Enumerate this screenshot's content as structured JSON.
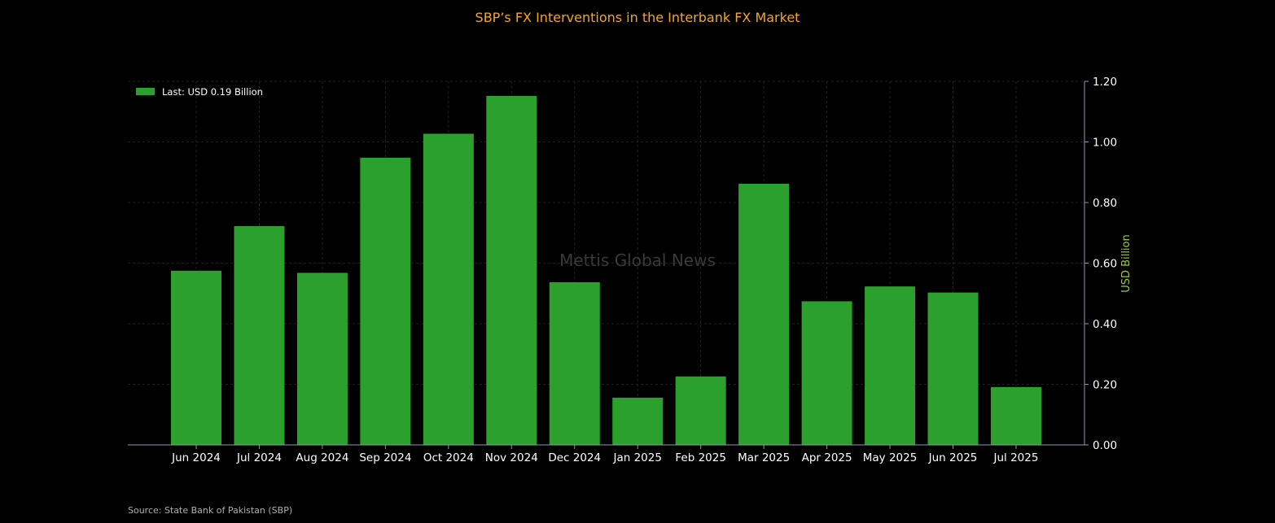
{
  "chart_data": {
    "type": "bar",
    "title": "SBP’s FX Interventions in the Interbank FX Market",
    "xlabel": "",
    "ylabel": "USD Billion",
    "categories": [
      "Jun 2024",
      "Jul 2024",
      "Aug 2024",
      "Sep 2024",
      "Oct 2024",
      "Nov 2024",
      "Dec 2024",
      "Jan 2025",
      "Feb 2025",
      "Mar 2025",
      "Apr 2025",
      "May 2025",
      "Jun 2025",
      "Jul 2025"
    ],
    "series": [
      {
        "name": "Last: USD 0.19 Billion",
        "color": "#2ca02c",
        "values": [
          0.575,
          0.722,
          0.568,
          0.948,
          1.027,
          1.152,
          0.537,
          0.156,
          0.226,
          0.862,
          0.474,
          0.523,
          0.503,
          0.191
        ]
      }
    ],
    "ylim": [
      0,
      1.2
    ],
    "yticks": [
      "0.00",
      "0.20",
      "0.40",
      "0.60",
      "0.80",
      "1.00",
      "1.20"
    ],
    "y_axis_side": "right",
    "grid": true,
    "legend_position": "top-left",
    "watermark": "Mettis Global News",
    "source": "Source: State Bank of Pakistan (SBP)",
    "colors": {
      "background": "#000000",
      "title": "#f5a623",
      "ylabel": "#9acd32",
      "bar": "#2ca02c",
      "tick_text": "#ffffff"
    }
  }
}
